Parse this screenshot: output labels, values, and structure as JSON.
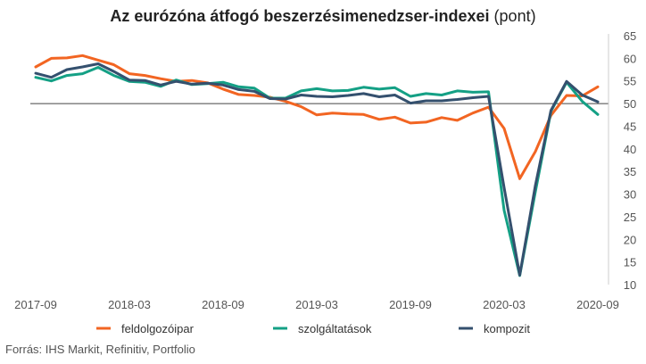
{
  "title_main": "Az eurózóna átfogó beszerzésimenedzser-indexei",
  "title_unit": "(pont)",
  "source": "Forrás: IHS Markit, Refinitiv, Portfolio",
  "chart_data": {
    "type": "line",
    "title": "Az eurózóna átfogó beszerzésimenedzser-indexei (pont)",
    "x_tick_labels": [
      "2017-09",
      "2018-03",
      "2018-09",
      "2019-03",
      "2019-09",
      "2020-03",
      "2020-09"
    ],
    "y_ticks": [
      10,
      15,
      20,
      25,
      30,
      35,
      40,
      45,
      50,
      55,
      60,
      65
    ],
    "ylim": [
      10,
      65
    ],
    "reference_line": 50,
    "grid": false,
    "y_axis_side": "right",
    "legend_position": "bottom",
    "x": [
      "2017-09",
      "2017-10",
      "2017-11",
      "2017-12",
      "2018-01",
      "2018-02",
      "2018-03",
      "2018-04",
      "2018-05",
      "2018-06",
      "2018-07",
      "2018-08",
      "2018-09",
      "2018-10",
      "2018-11",
      "2018-12",
      "2019-01",
      "2019-02",
      "2019-03",
      "2019-04",
      "2019-05",
      "2019-06",
      "2019-07",
      "2019-08",
      "2019-09",
      "2019-10",
      "2019-11",
      "2019-12",
      "2020-01",
      "2020-02",
      "2020-03",
      "2020-04",
      "2020-05",
      "2020-06",
      "2020-07",
      "2020-08",
      "2020-09"
    ],
    "series": [
      {
        "name": "feldolgozóipar",
        "color": "#f26522",
        "values": [
          58.1,
          60.0,
          60.1,
          60.6,
          59.6,
          58.6,
          56.6,
          56.2,
          55.5,
          54.9,
          55.1,
          54.6,
          53.2,
          52.0,
          51.8,
          51.4,
          50.5,
          49.3,
          47.5,
          47.9,
          47.7,
          47.6,
          46.5,
          47.0,
          45.7,
          45.9,
          46.9,
          46.3,
          47.9,
          49.2,
          44.5,
          33.4,
          39.4,
          47.4,
          51.8,
          51.7,
          53.7
        ]
      },
      {
        "name": "szolgáltatások",
        "color": "#14a085",
        "values": [
          55.8,
          55.0,
          56.2,
          56.6,
          58.0,
          56.2,
          54.9,
          54.7,
          53.8,
          55.2,
          54.2,
          54.4,
          54.7,
          53.7,
          53.4,
          51.2,
          51.2,
          52.8,
          53.3,
          52.8,
          52.9,
          53.6,
          53.2,
          53.5,
          51.6,
          52.2,
          51.9,
          52.8,
          52.5,
          52.6,
          26.4,
          12.0,
          30.5,
          48.3,
          54.7,
          50.5,
          47.6
        ]
      },
      {
        "name": "kompozit",
        "color": "#34506e",
        "values": [
          56.7,
          55.8,
          57.5,
          58.1,
          58.8,
          57.1,
          55.2,
          55.1,
          54.1,
          54.9,
          54.3,
          54.5,
          54.1,
          53.1,
          52.7,
          51.1,
          51.0,
          51.9,
          51.6,
          51.5,
          51.8,
          52.2,
          51.5,
          51.9,
          50.1,
          50.6,
          50.6,
          50.9,
          51.3,
          51.6,
          31.4,
          12.1,
          31.9,
          48.5,
          54.9,
          51.9,
          50.4
        ]
      }
    ]
  }
}
